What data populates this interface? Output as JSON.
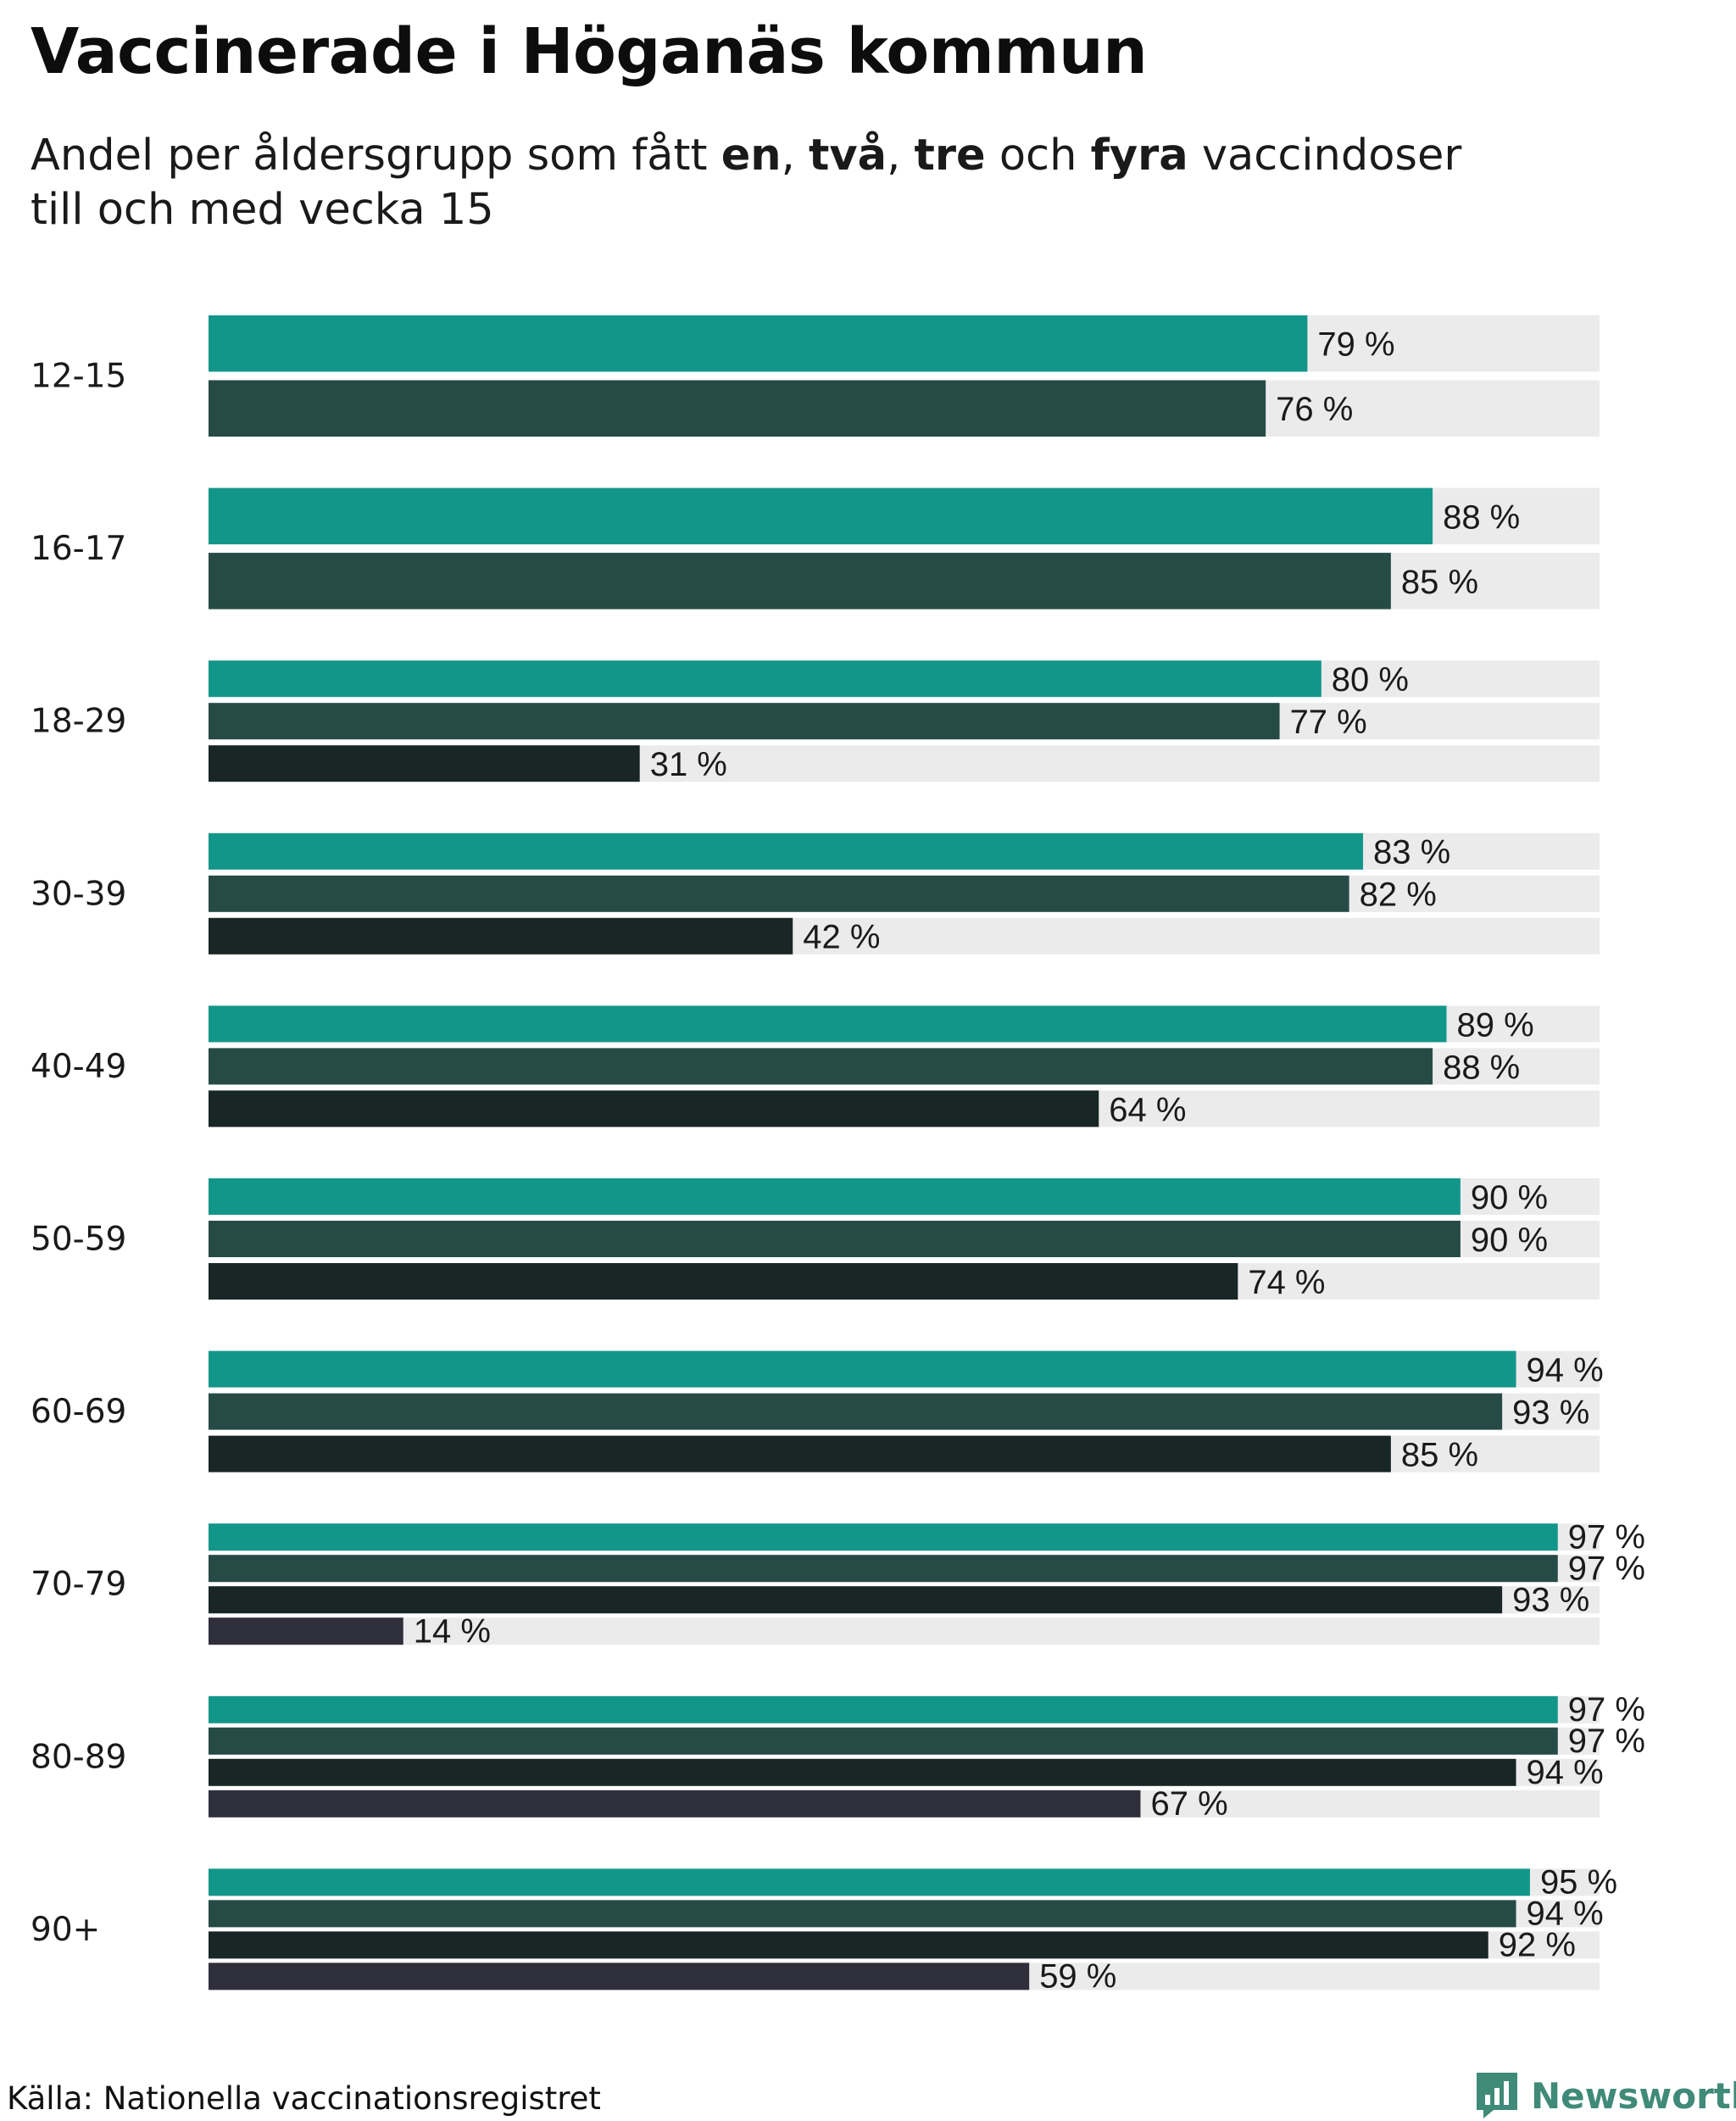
{
  "title": "Vaccinerade i Höganäs kommun",
  "subtitle": {
    "prefix": "Andel per åldersgrupp som fått ",
    "dose1": "en",
    "sep1": ", ",
    "dose2": "två",
    "sep2": ", ",
    "dose3": "tre",
    "sep3": " och ",
    "dose4": "fyra",
    "suffix": " vaccindoser",
    "line2": "till och med vecka 15"
  },
  "colors": {
    "dose1": "#13968a",
    "dose2": "#264b47",
    "dose3": "#182725",
    "dose4": "#2f2f3c",
    "track": "#ebebeb",
    "logo": "#3f8a78"
  },
  "source": "Källa: Nationella vaccinationsregistret",
  "logo": {
    "text": "Newsworthy",
    "icon": "newsworthy-logo-icon"
  },
  "chart_data": {
    "type": "bar",
    "orientation": "horizontal",
    "unit": "%",
    "xlim": [
      0,
      100
    ],
    "grid": false,
    "legend": "none",
    "categories": [
      "12-15",
      "16-17",
      "18-29",
      "30-39",
      "40-49",
      "50-59",
      "60-69",
      "70-79",
      "80-89",
      "90+"
    ],
    "series": [
      {
        "name": "en",
        "values": [
          79,
          88,
          80,
          83,
          89,
          90,
          94,
          97,
          97,
          95
        ]
      },
      {
        "name": "två",
        "values": [
          76,
          85,
          77,
          82,
          88,
          90,
          93,
          97,
          97,
          94
        ]
      },
      {
        "name": "tre",
        "values": [
          null,
          null,
          31,
          42,
          64,
          74,
          85,
          93,
          94,
          92
        ]
      },
      {
        "name": "fyra",
        "values": [
          null,
          null,
          null,
          null,
          null,
          null,
          null,
          14,
          67,
          59
        ]
      }
    ]
  }
}
